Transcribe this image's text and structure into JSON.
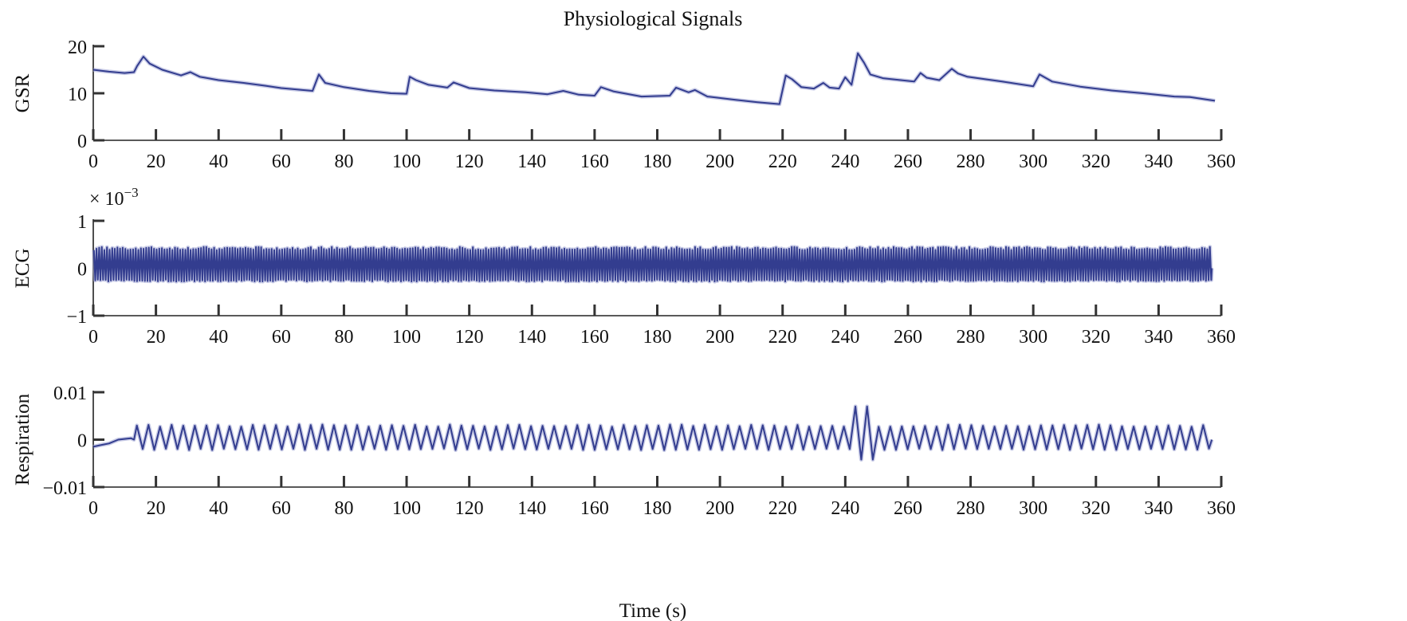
{
  "chart_data": {
    "type": "line",
    "title": "Physiological Signals",
    "xlabel": "Time (s)",
    "line_color": "#333d8f",
    "line_halo_color": "#a3a8d6",
    "x_ticks": [
      0,
      20,
      40,
      60,
      80,
      100,
      120,
      140,
      160,
      180,
      200,
      220,
      240,
      260,
      280,
      300,
      320,
      340,
      360
    ],
    "xlim": [
      0,
      360
    ],
    "panels": [
      {
        "key": "gsr",
        "ylabel": "GSR",
        "ylim": [
          0,
          20
        ],
        "y_ticks": [
          0,
          10,
          20
        ],
        "y_tick_labels": [
          "0",
          "10",
          "20"
        ],
        "exponent_label": "",
        "series": [
          {
            "kind": "polyline",
            "x": [
              0,
              5,
              10,
              13,
              14,
              16,
              18,
              22,
              28,
              31,
              34,
              40,
              48,
              55,
              60,
              65,
              70,
              72,
              74,
              80,
              88,
              95,
              100,
              101,
              103,
              107,
              113,
              115,
              120,
              128,
              138,
              145,
              150,
              155,
              160,
              162,
              166,
              175,
              184,
              186,
              190,
              192,
              196,
              205,
              212,
              219,
              221,
              223,
              226,
              230,
              233,
              235,
              238,
              240,
              242,
              244,
              246,
              248,
              252,
              262,
              264,
              266,
              270,
              274,
              276,
              279,
              290,
              300,
              302,
              306,
              315,
              325,
              335,
              345,
              350,
              358
            ],
            "y": [
              15.0,
              14.6,
              14.3,
              14.5,
              15.8,
              17.8,
              16.3,
              15.0,
              13.8,
              14.5,
              13.5,
              12.8,
              12.2,
              11.6,
              11.1,
              10.8,
              10.5,
              14.0,
              12.2,
              11.3,
              10.5,
              10.0,
              9.9,
              13.5,
              12.8,
              11.8,
              11.2,
              12.3,
              11.1,
              10.6,
              10.2,
              9.8,
              10.5,
              9.7,
              9.5,
              11.3,
              10.4,
              9.3,
              9.5,
              11.2,
              10.2,
              10.7,
              9.3,
              8.6,
              8.1,
              7.7,
              13.8,
              13.0,
              11.3,
              11.0,
              12.2,
              11.2,
              11.0,
              13.4,
              11.8,
              18.5,
              16.5,
              14.0,
              13.2,
              12.5,
              14.3,
              13.3,
              12.8,
              15.2,
              14.2,
              13.5,
              12.5,
              11.5,
              14.0,
              12.5,
              11.4,
              10.6,
              10.0,
              9.3,
              9.2,
              8.4
            ]
          }
        ]
      },
      {
        "key": "ecg",
        "ylabel": "ECG",
        "ylim": [
          -1,
          1
        ],
        "y_ticks": [
          -1,
          0,
          1
        ],
        "y_tick_labels": [
          "−1",
          "0",
          "1"
        ],
        "exponent_label": "× 10",
        "exponent_power": "−3",
        "series": [
          {
            "kind": "oscillation",
            "x_start": 0,
            "x_end": 357,
            "cycles": 428,
            "amplitude_high": 0.45,
            "amplitude_low": -0.28
          }
        ]
      },
      {
        "key": "respiration",
        "ylabel": "Respiration",
        "ylim": [
          -0.01,
          0.01
        ],
        "y_ticks": [
          -0.01,
          0,
          0.01
        ],
        "y_tick_labels": [
          "−0.01",
          "0",
          "0.01"
        ],
        "exponent_label": "",
        "series": [
          {
            "kind": "oscillation",
            "baseline_x": [
              0,
              2,
              5,
              8,
              12,
              13
            ],
            "baseline_y": [
              -0.0015,
              -0.0012,
              -0.0008,
              0.0,
              0.0003,
              0.0
            ],
            "x_start": 13,
            "x_end": 357,
            "cycles": 93,
            "amplitude_high": 0.0032,
            "amplitude_low": -0.0022,
            "spike": {
              "x": 243.5,
              "high": 0.007,
              "low": -0.0042
            }
          }
        ]
      }
    ]
  }
}
